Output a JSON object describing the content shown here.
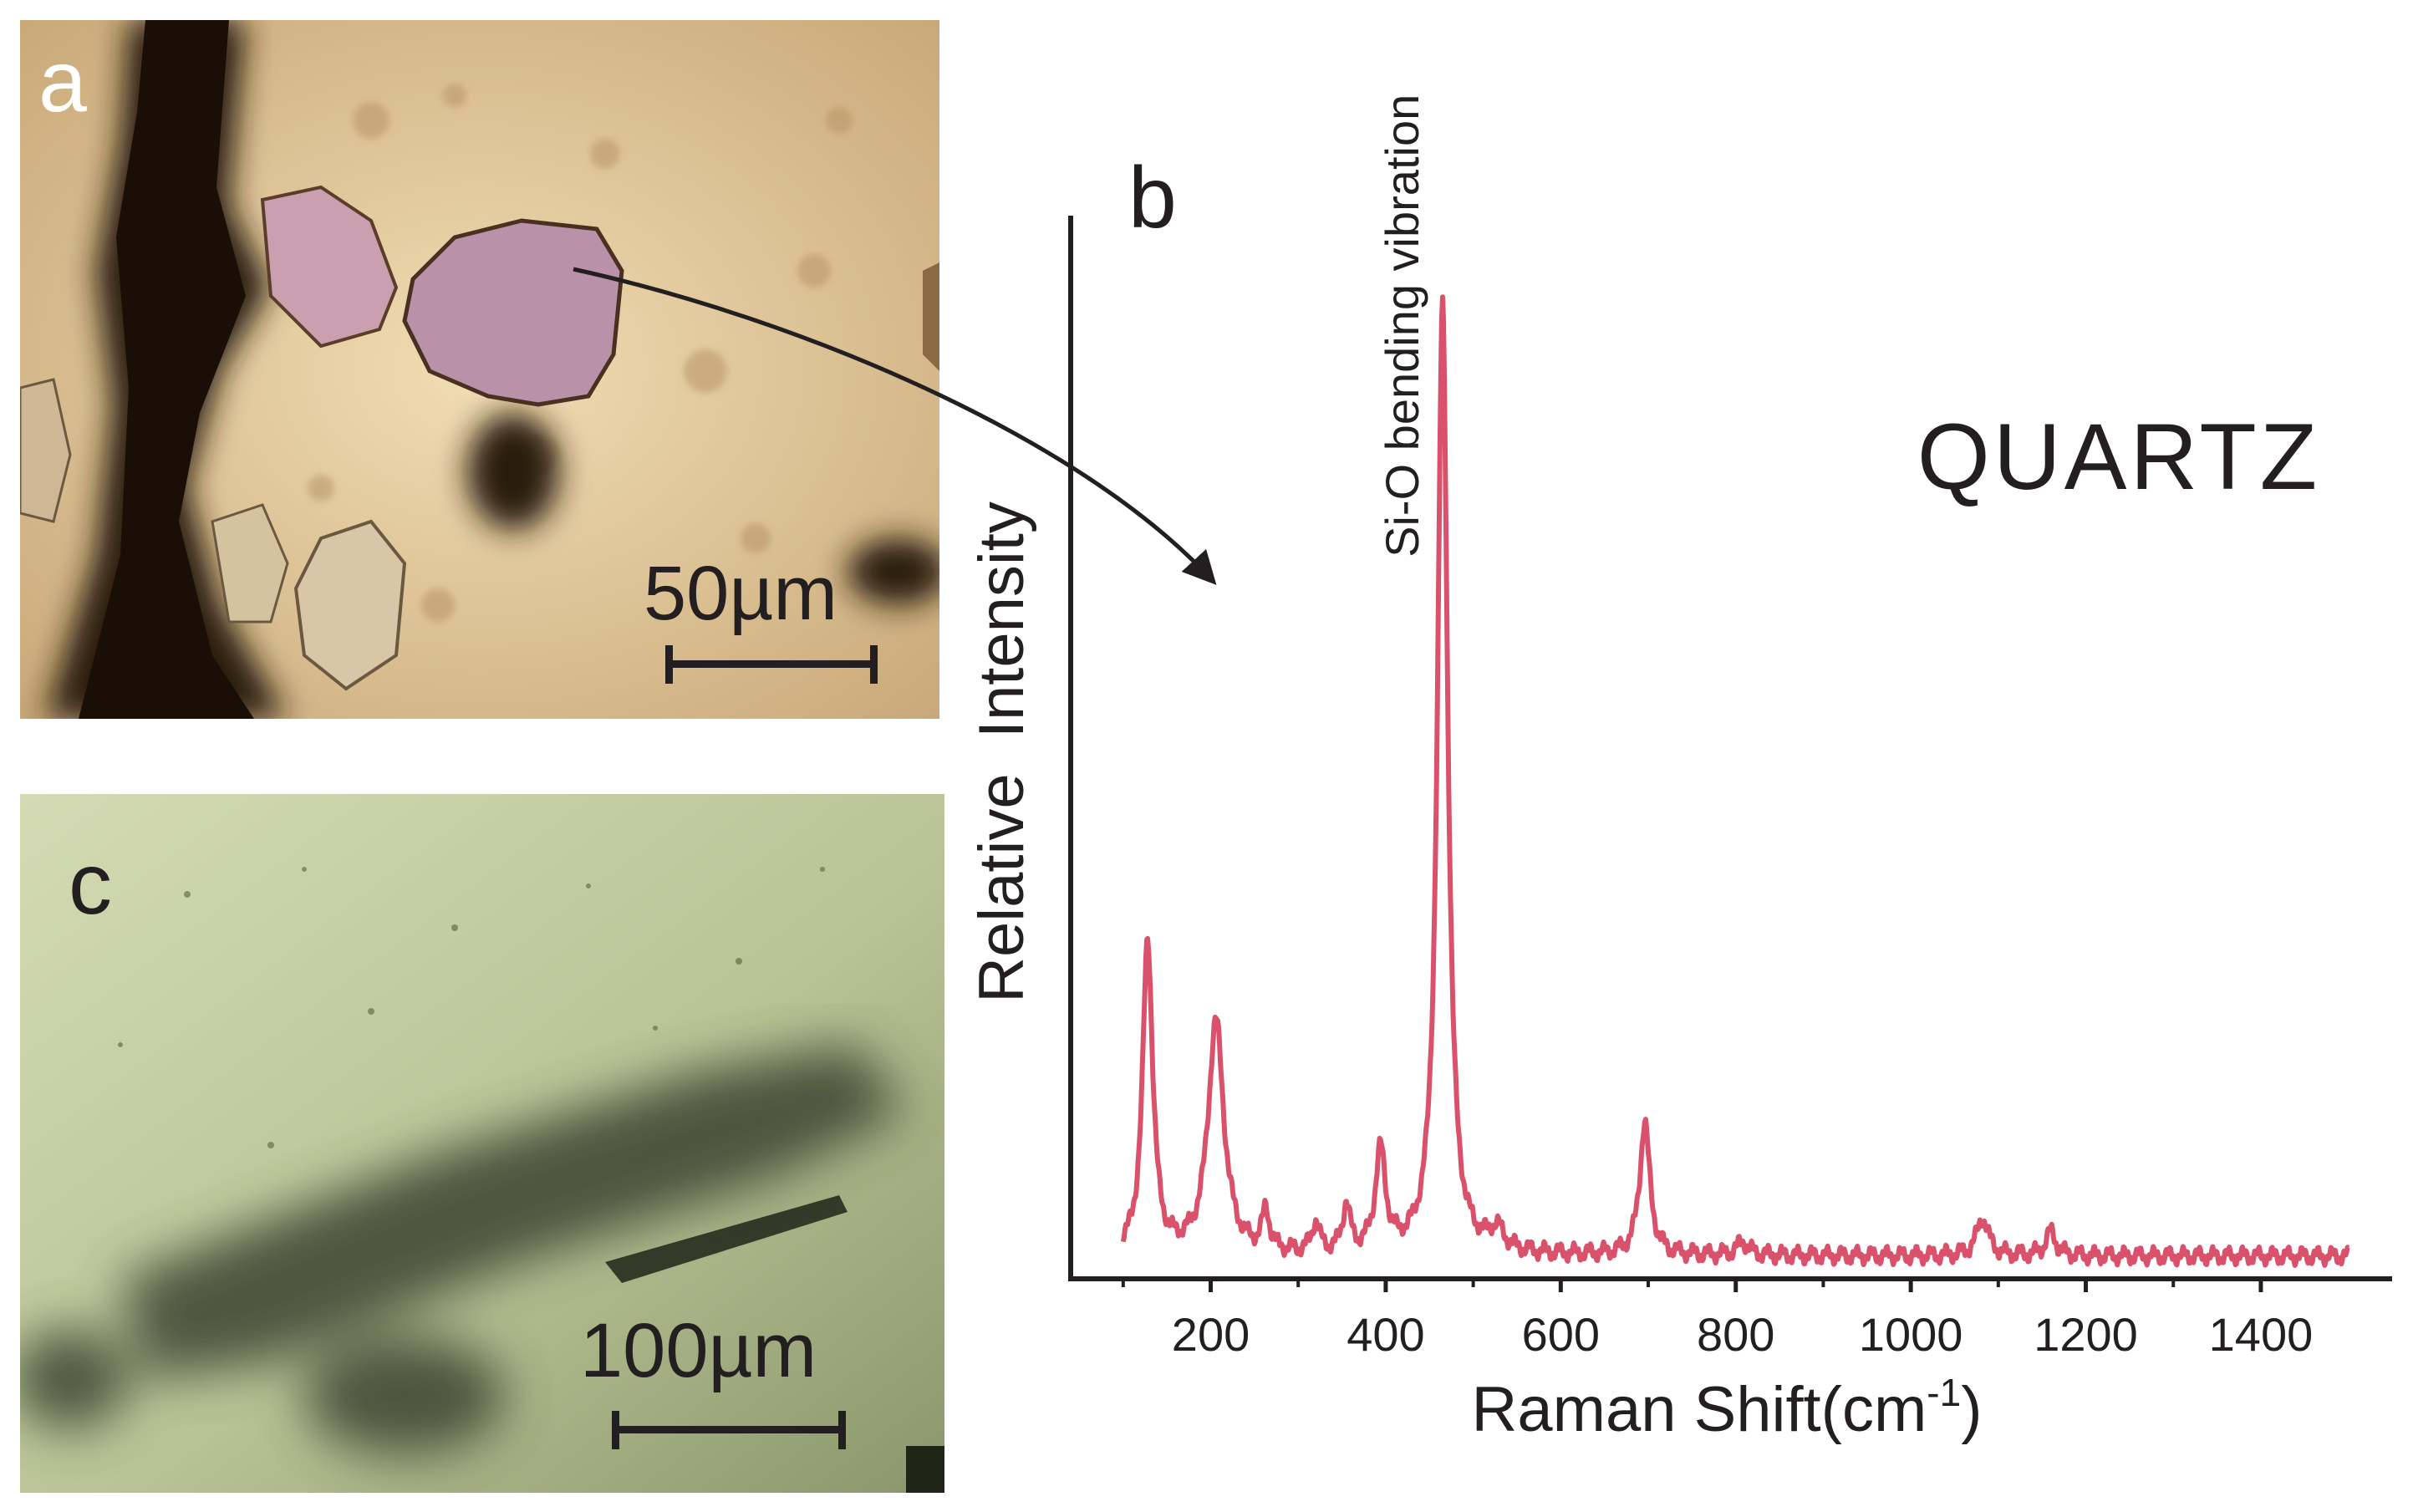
{
  "panels": {
    "a": {
      "label": "a",
      "scale_bar": "50µm"
    },
    "b": {
      "label": "b"
    },
    "c": {
      "label": "c",
      "scale_bar": "100µm"
    }
  },
  "colors": {
    "spectrum": "#d9516a",
    "ink": "#231f20"
  },
  "chart_data": {
    "type": "line",
    "title": "QUARTZ",
    "xlabel": "Raman Shift(cm",
    "xlabel_sup": "-1",
    "xlabel_close": ")",
    "ylabel": "Relative  Intensity",
    "xlim": [
      40,
      1550
    ],
    "ylim": [
      0,
      1.12
    ],
    "xticks": [
      200,
      400,
      600,
      800,
      1000,
      1200,
      1400
    ],
    "xtick_labels": [
      "200",
      "400",
      "600",
      "800",
      "1000",
      "1200",
      "1400"
    ],
    "annotation": {
      "text": "Si-O bending vibration",
      "x": 420
    },
    "series": [
      {
        "name": "QUARTZ",
        "range": [
          100,
          1500
        ],
        "baseline": 0.024,
        "peaks": [
          {
            "x": 128,
            "height": 0.33,
            "width": 7
          },
          {
            "x": 206,
            "height": 0.245,
            "width": 11
          },
          {
            "x": 263,
            "height": 0.042,
            "width": 5
          },
          {
            "x": 320,
            "height": 0.032,
            "width": 5
          },
          {
            "x": 355,
            "height": 0.05,
            "width": 5
          },
          {
            "x": 394,
            "height": 0.106,
            "width": 7
          },
          {
            "x": 465,
            "height": 1.0,
            "width": 7
          },
          {
            "x": 527,
            "height": 0.022,
            "width": 10
          },
          {
            "x": 696,
            "height": 0.14,
            "width": 7
          },
          {
            "x": 808,
            "height": 0.014,
            "width": 8
          },
          {
            "x": 1082,
            "height": 0.04,
            "width": 8
          },
          {
            "x": 1160,
            "height": 0.025,
            "width": 7
          }
        ]
      }
    ]
  }
}
